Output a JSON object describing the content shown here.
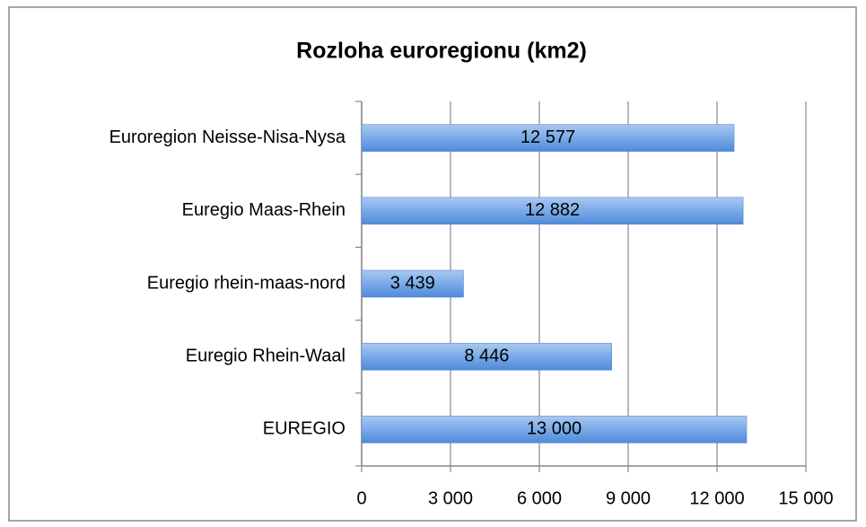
{
  "chart_data": {
    "type": "barh",
    "title": "Rozloha euroregionu (km2)",
    "categories": [
      "Euroregion Neisse-Nisa-Nysa",
      "Euregio Maas-Rhein",
      "Euregio rhein-maas-nord",
      "Euregio Rhein-Waal",
      "EUREGIO"
    ],
    "values": [
      12577,
      12882,
      3439,
      8446,
      13000
    ],
    "value_labels": [
      "12 577",
      "12 882",
      "3 439",
      "8 446",
      "13 000"
    ],
    "color": "#6a9fe0",
    "xlim": [
      0,
      15000
    ],
    "xticks": [
      0,
      {
        "value": 3000,
        "label": "3 000"
      },
      {
        "value": 6000,
        "label": "6 000"
      },
      {
        "value": 9000,
        "label": "9 000"
      },
      {
        "value": 12000,
        "label": "12 000"
      },
      {
        "value": 15000,
        "label": "15 000"
      }
    ],
    "grid": true
  }
}
